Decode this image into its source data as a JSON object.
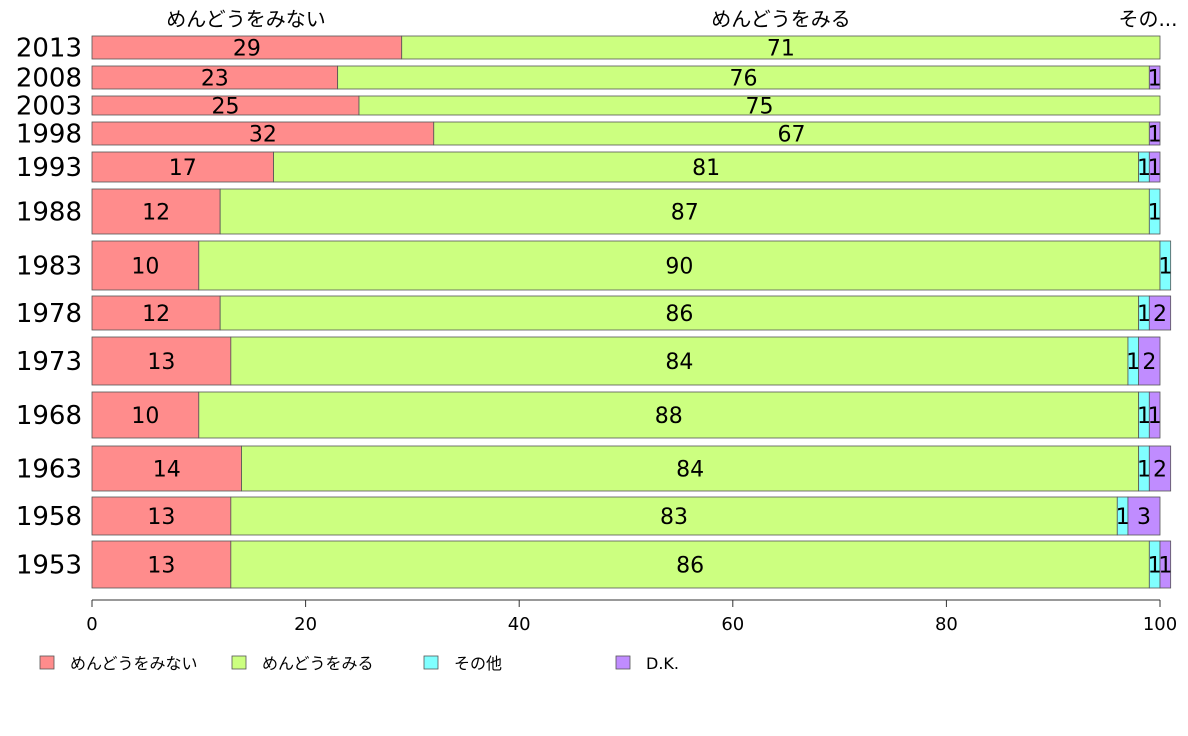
{
  "chart_data": {
    "type": "bar",
    "orientation": "horizontal",
    "stacked": "percent",
    "categories": [
      "2013",
      "2008",
      "2003",
      "1998",
      "1993",
      "1988",
      "1983",
      "1978",
      "1973",
      "1968",
      "1963",
      "1958",
      "1953"
    ],
    "series": [
      {
        "name": "めんどうをみない",
        "color": "#ff8c8c",
        "values": [
          29,
          23,
          25,
          32,
          17,
          12,
          10,
          12,
          13,
          10,
          14,
          13,
          13
        ]
      },
      {
        "name": "めんどうをみる",
        "color": "#ccff80",
        "values": [
          71,
          76,
          75,
          67,
          81,
          87,
          90,
          86,
          84,
          88,
          84,
          83,
          86
        ]
      },
      {
        "name": "その他",
        "color": "#80ffff",
        "values": [
          0,
          0,
          0,
          0,
          1,
          1,
          1,
          1,
          1,
          1,
          1,
          1,
          1
        ]
      },
      {
        "name": "D.K.",
        "color": "#c08cff",
        "values": [
          0,
          1,
          0,
          1,
          1,
          0,
          0,
          2,
          2,
          1,
          2,
          3,
          1
        ]
      }
    ],
    "column_headers": [
      "めんどうをみない",
      "めんどうをみる",
      "その..."
    ],
    "x_ticks": [
      "0",
      "20",
      "40",
      "60",
      "80",
      "100"
    ],
    "xlim": [
      0,
      100
    ],
    "legend_position": "bottom",
    "grid": false
  }
}
